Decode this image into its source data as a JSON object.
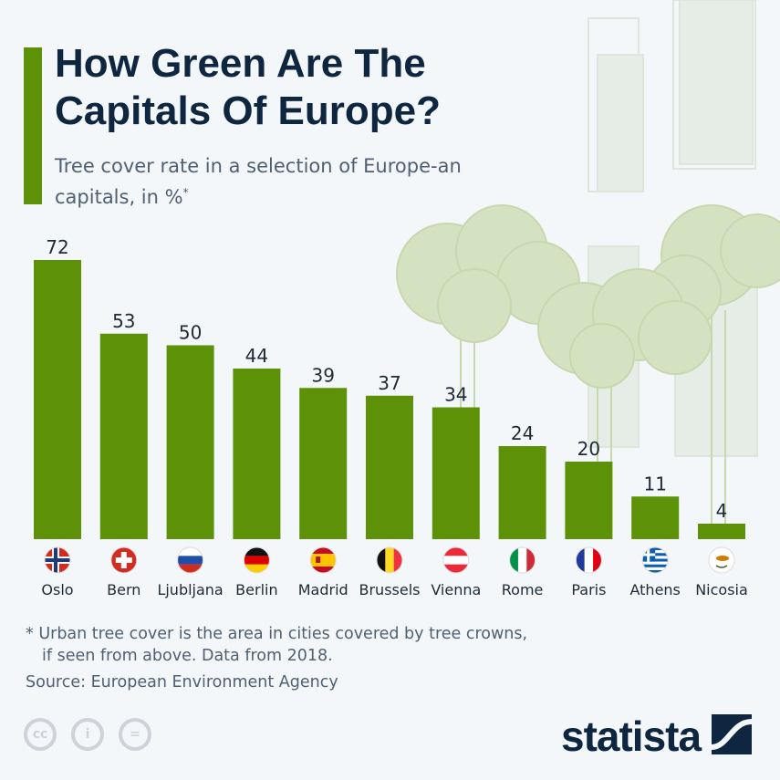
{
  "title": "How Green Are The Capitals Of Europe?",
  "subtitle": "Tree cover rate in a selection of Europe-an capitals, in %",
  "subtitle_mark": "*",
  "footnote_1": "* Urban tree cover is the area in cities covered by tree crowns,",
  "footnote_2": "if seen from above. Data from 2018.",
  "source": "Source: European Environment Agency",
  "brand": "statista",
  "license_icons": [
    "cc-icon",
    "attribution-icon",
    "no-derivatives-icon"
  ],
  "colors": {
    "bar": "#5c9108",
    "title": "#0f2640",
    "accent": "#5c9108"
  },
  "chart_data": {
    "type": "bar",
    "title": "How Green Are The Capitals Of Europe?",
    "ylabel": "",
    "categories": [
      "Oslo",
      "Bern",
      "Ljubljana",
      "Berlin",
      "Madrid",
      "Brussels",
      "Vienna",
      "Rome",
      "Paris",
      "Athens",
      "Nicosia"
    ],
    "values": [
      72,
      53,
      50,
      44,
      39,
      37,
      34,
      24,
      20,
      11,
      4
    ],
    "flags": [
      "norway",
      "switzerland",
      "slovenia",
      "germany",
      "spain",
      "belgium",
      "austria",
      "italy",
      "france",
      "greece",
      "cyprus"
    ],
    "ylim": [
      0,
      72
    ],
    "grid": false,
    "data_labels": true
  }
}
